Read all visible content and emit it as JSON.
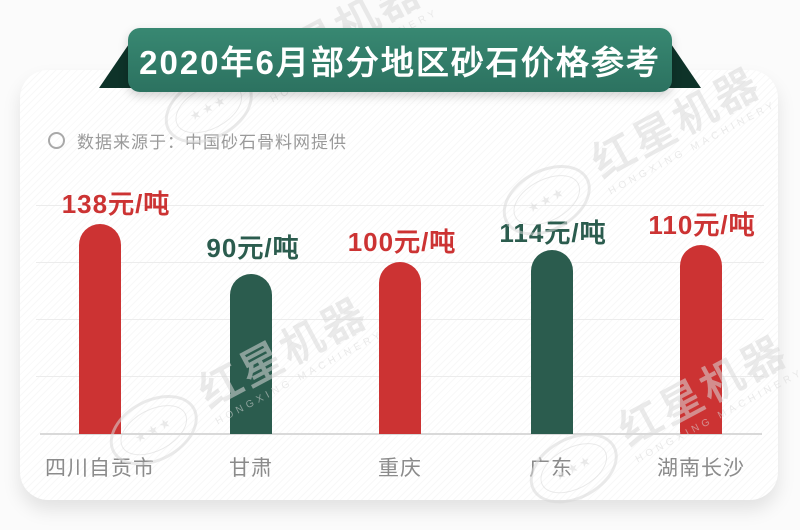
{
  "banner": {
    "title": "2020年6月部分地区砂石价格参考"
  },
  "source": {
    "text": "数据来源于：中国砂石骨料网提供"
  },
  "watermark": {
    "cn": "红星机器",
    "en": "HONGXING MACHINERY",
    "stars": "★★★"
  },
  "colors": {
    "red": "#cc3333",
    "green": "#2b5c4e",
    "banner_green": "#2f7c6a",
    "fold_dark": "#0e3329",
    "label_gray": "#8b8b8b",
    "source_gray": "#9a9a9a"
  },
  "chart_data": {
    "type": "bar",
    "title": "2020年6月部分地区砂石价格参考",
    "source": "中国砂石骨料网提供",
    "categories": [
      "四川自贡市",
      "甘肃",
      "重庆",
      "广东",
      "湖南长沙"
    ],
    "values": [
      138,
      90,
      100,
      114,
      110
    ],
    "value_labels": [
      "138元/吨",
      "90元/吨",
      "100元/吨",
      "114元/吨",
      "110元/吨"
    ],
    "unit": "元/吨",
    "bar_colors": [
      "#cc3333",
      "#2b5c4e",
      "#cc3333",
      "#2b5c4e",
      "#cc3333"
    ],
    "xlabel": "",
    "ylabel": "",
    "grid": true,
    "legend": "none"
  }
}
